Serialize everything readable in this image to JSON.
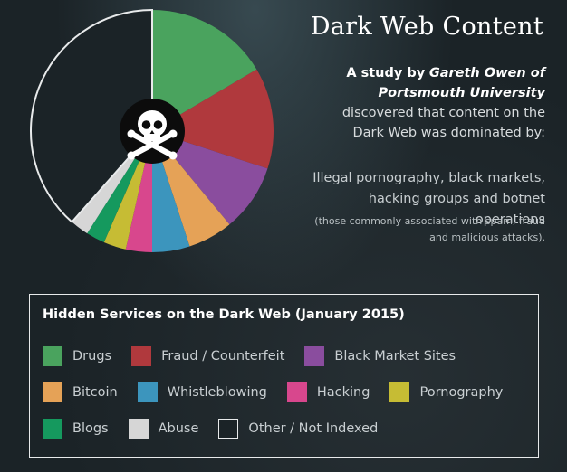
{
  "chart_data": {
    "type": "pie",
    "title": "Dark Web Content",
    "intro": {
      "lead": "A study by",
      "author": "Gareth Owen of Portsmouth University",
      "rest": "discovered that content on the Dark Web was dominated by:"
    },
    "summary": "Illegal pornography, black markets, hacking groups and botnet operations",
    "note": "(those commonly associated with spam, fraud and malicious attacks).",
    "legend_title": "Hidden Services on the Dark Web (January 2015)",
    "categories": [
      "Drugs",
      "Fraud / Counterfeit",
      "Black Market Sites",
      "Bitcoin",
      "Whistleblowing",
      "Hacking",
      "Pornography",
      "Blogs",
      "Abuse",
      "Other / Not Indexed"
    ],
    "values": [
      16.5,
      13.5,
      9,
      6,
      5,
      3.5,
      3,
      2.5,
      2.5,
      38.5
    ],
    "colors": [
      "#4aa35e",
      "#b0393d",
      "#8a4d9e",
      "#e5a257",
      "#3c95bd",
      "#d8478d",
      "#c6bc34",
      "#15995e",
      "#d6d6d6",
      "#1b2327"
    ]
  }
}
